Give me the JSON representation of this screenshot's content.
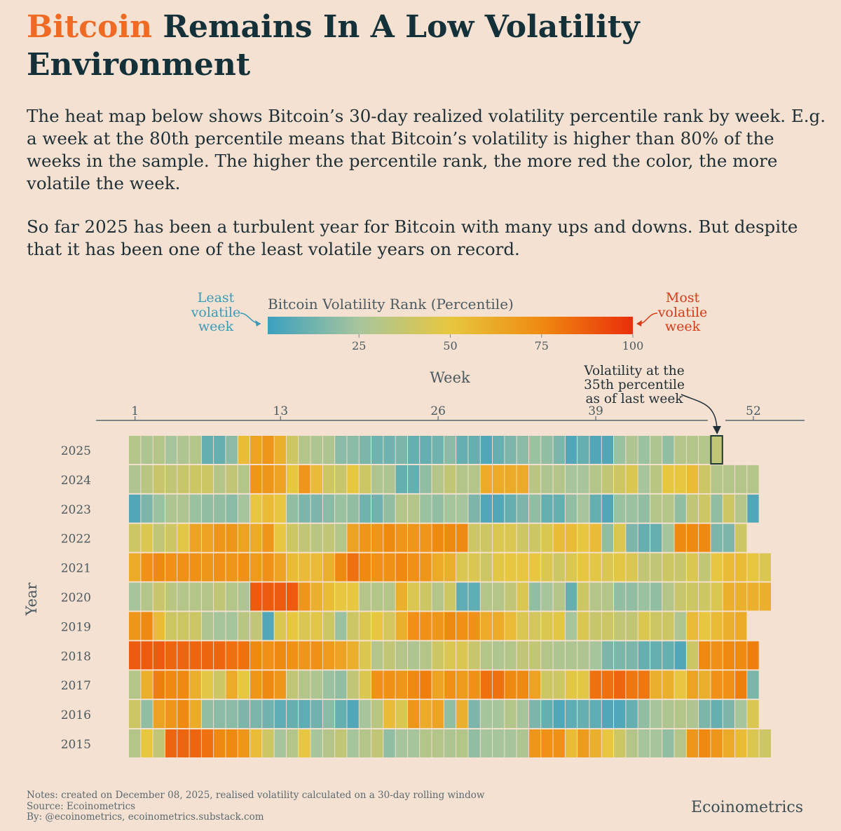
{
  "title": {
    "highlight": "Bitcoin",
    "rest": " Remains In A Low Volatility Environment"
  },
  "intro": {
    "p1": "The heat map below shows Bitcoin’s 30-day realized volatility percentile rank by week. E.g. a week at the 80th percentile means that Bitcoin’s volatility is higher than 80% of the weeks in the sample. The higher the percentile rank, the more red the color, the more volatile the week.",
    "p2": "So far 2025 has been a turbulent year for Bitcoin with many ups and downs. But despite that it has been one of the least volatile years on record."
  },
  "notes": {
    "line1": "Notes: created on December 08, 2025, realised volatility calculated on a 30-day rolling window",
    "line2": "Source: Ecoinometrics",
    "line3": "By: @ecoinometrics, ecoinometrics.substack.com"
  },
  "brand": "Ecoinometrics",
  "colors": {
    "low": "#3ba0bf",
    "mid_low": "#a7c59c",
    "mid": "#e7c73f",
    "mid_high": "#ef8a10",
    "high": "#ea2e0a"
  },
  "chart_data": {
    "type": "heatmap",
    "xlabel": "Week",
    "ylabel": "Year",
    "x_ticks": [
      1,
      13,
      26,
      39,
      52
    ],
    "colorbar": {
      "title": "Bitcoin Volatility Rank (Percentile)",
      "ticks": [
        25,
        50,
        75,
        100
      ],
      "range": [
        0,
        100
      ],
      "low_label": [
        "Least",
        "volatile",
        "week"
      ],
      "high_label": [
        "Most",
        "volatile",
        "week"
      ]
    },
    "annotation": {
      "lines": [
        "Volatility at the",
        "35th percentile",
        "as of last week"
      ],
      "year": 2025,
      "week": 49,
      "value": 35
    },
    "years": [
      2025,
      2024,
      2023,
      2022,
      2021,
      2020,
      2019,
      2018,
      2017,
      2016,
      2015
    ],
    "values": {
      "2025": [
        30,
        28,
        30,
        25,
        28,
        30,
        10,
        10,
        18,
        55,
        65,
        70,
        60,
        40,
        30,
        28,
        28,
        18,
        18,
        15,
        12,
        12,
        15,
        10,
        10,
        12,
        18,
        10,
        10,
        5,
        10,
        15,
        18,
        22,
        20,
        15,
        5,
        10,
        5,
        5,
        22,
        28,
        22,
        28,
        20,
        30,
        30,
        30,
        35
      ],
      "2024": [
        28,
        32,
        38,
        35,
        38,
        40,
        40,
        30,
        35,
        30,
        70,
        70,
        65,
        50,
        70,
        55,
        40,
        38,
        50,
        40,
        28,
        28,
        10,
        10,
        20,
        30,
        35,
        30,
        30,
        62,
        62,
        62,
        62,
        32,
        28,
        30,
        25,
        25,
        30,
        35,
        40,
        45,
        25,
        32,
        50,
        50,
        55,
        40,
        30,
        30,
        30,
        30
      ],
      "2023": [
        5,
        15,
        22,
        28,
        28,
        22,
        20,
        20,
        18,
        25,
        50,
        55,
        50,
        20,
        15,
        15,
        18,
        22,
        20,
        12,
        12,
        20,
        30,
        30,
        22,
        20,
        25,
        25,
        15,
        5,
        5,
        10,
        15,
        20,
        10,
        10,
        20,
        25,
        10,
        5,
        22,
        22,
        20,
        30,
        30,
        20,
        35,
        40,
        20,
        40,
        30,
        5
      ],
      "2022": [
        40,
        45,
        35,
        40,
        48,
        65,
        65,
        70,
        70,
        65,
        62,
        70,
        50,
        40,
        35,
        32,
        35,
        30,
        65,
        70,
        70,
        75,
        70,
        70,
        70,
        75,
        75,
        75,
        40,
        40,
        45,
        45,
        40,
        40,
        45,
        55,
        55,
        50,
        55,
        20,
        45,
        15,
        10,
        10,
        25,
        75,
        75,
        75,
        15,
        15,
        40
      ],
      "2021": [
        62,
        72,
        75,
        72,
        72,
        72,
        70,
        72,
        70,
        72,
        68,
        72,
        65,
        55,
        55,
        55,
        60,
        75,
        82,
        75,
        72,
        72,
        75,
        72,
        70,
        62,
        60,
        45,
        45,
        40,
        48,
        50,
        50,
        50,
        45,
        40,
        45,
        50,
        48,
        45,
        48,
        45,
        35,
        35,
        40,
        38,
        45,
        35,
        50,
        55,
        55,
        50,
        45
      ],
      "2020": [
        25,
        30,
        38,
        32,
        30,
        30,
        30,
        35,
        30,
        28,
        88,
        88,
        88,
        88,
        70,
        60,
        55,
        50,
        50,
        30,
        30,
        30,
        60,
        45,
        40,
        30,
        40,
        8,
        8,
        30,
        30,
        35,
        45,
        20,
        25,
        30,
        10,
        40,
        30,
        30,
        20,
        20,
        22,
        20,
        30,
        38,
        40,
        40,
        45,
        60,
        60,
        60,
        60
      ],
      "2019": [
        70,
        75,
        55,
        40,
        40,
        40,
        28,
        25,
        25,
        32,
        35,
        5,
        45,
        50,
        45,
        48,
        40,
        22,
        40,
        45,
        50,
        42,
        60,
        72,
        72,
        70,
        75,
        72,
        72,
        62,
        62,
        55,
        45,
        42,
        45,
        48,
        25,
        45,
        38,
        40,
        35,
        35,
        45,
        40,
        40,
        28,
        55,
        50,
        55,
        60,
        62
      ],
      "2018": [
        88,
        88,
        88,
        85,
        85,
        85,
        85,
        85,
        82,
        82,
        75,
        72,
        75,
        72,
        70,
        72,
        68,
        65,
        60,
        45,
        30,
        35,
        30,
        28,
        30,
        40,
        45,
        45,
        38,
        30,
        28,
        30,
        35,
        35,
        30,
        28,
        28,
        28,
        25,
        15,
        15,
        15,
        10,
        10,
        10,
        5,
        40,
        75,
        72,
        75,
        75,
        78
      ],
      "2017": [
        30,
        60,
        78,
        75,
        75,
        60,
        48,
        40,
        62,
        50,
        70,
        75,
        70,
        35,
        30,
        28,
        22,
        20,
        35,
        45,
        72,
        72,
        70,
        75,
        78,
        65,
        72,
        68,
        72,
        82,
        82,
        75,
        75,
        65,
        40,
        40,
        48,
        48,
        82,
        82,
        85,
        80,
        80,
        60,
        60,
        50,
        65,
        60,
        72,
        72,
        78,
        15
      ],
      "2016": [
        40,
        20,
        65,
        70,
        75,
        62,
        20,
        18,
        18,
        15,
        15,
        12,
        8,
        10,
        8,
        12,
        18,
        10,
        5,
        25,
        32,
        55,
        45,
        70,
        62,
        65,
        20,
        60,
        15,
        25,
        25,
        30,
        25,
        15,
        10,
        5,
        8,
        10,
        8,
        5,
        5,
        10,
        20,
        25,
        28,
        30,
        28,
        15,
        10,
        15,
        25,
        45
      ],
      "2015": [
        30,
        50,
        35,
        85,
        85,
        85,
        82,
        75,
        75,
        70,
        55,
        40,
        25,
        30,
        50,
        25,
        30,
        35,
        25,
        30,
        35,
        20,
        25,
        25,
        30,
        30,
        28,
        30,
        20,
        25,
        25,
        25,
        28,
        70,
        72,
        72,
        55,
        68,
        60,
        50,
        40,
        30,
        25,
        25,
        20,
        30,
        70,
        75,
        70,
        62,
        55,
        45,
        40
      ]
    }
  }
}
